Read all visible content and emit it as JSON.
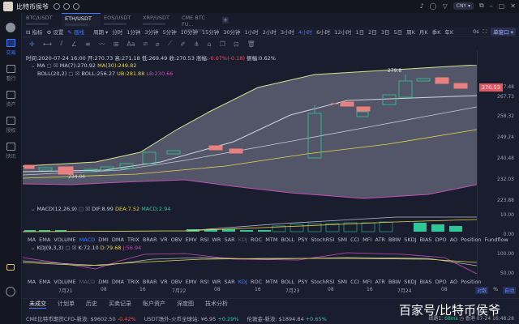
{
  "titlebar": {
    "app_title": "比特币侯爷",
    "currency": "CNY"
  },
  "sidebar": {
    "items": [
      {
        "label": "交易"
      },
      {
        "label": "看行"
      },
      {
        "label": "资产"
      },
      {
        "label": "授权"
      },
      {
        "label": "快讯"
      }
    ]
  },
  "tabs": [
    {
      "label": "BTC/USDT"
    },
    {
      "label": "ETH/USDT"
    },
    {
      "label": "EOS/USDT"
    },
    {
      "label": "XRP/USDT"
    },
    {
      "label": "CME BTC FU..."
    }
  ],
  "toolbar": {
    "indicator": "指标",
    "settings": "设置",
    "draw": "画线",
    "period": "周期",
    "periods": [
      "分时",
      "1分钟",
      "3分钟",
      "5分钟",
      "10分钟",
      "15分钟",
      "30分钟",
      "1小时",
      "2小时",
      "3小时",
      "4小时",
      "6小时",
      "12小时",
      "1日",
      "2日",
      "3日",
      "5日",
      "周K",
      "月K",
      "季K",
      "年K"
    ],
    "active_period": "4小时",
    "countdown": "0s",
    "window_mode": "单窗口"
  },
  "info": {
    "time": "时间:2020-07-24 16:00",
    "open": "开:270.73",
    "high": "高:271.18",
    "low": "低:269.49",
    "close": "收:270.53",
    "change_label": "涨幅:",
    "change": "-0.07%(-0.18)",
    "amplitude": "振幅:0.62%"
  },
  "ma": {
    "name": "MA",
    "ma7": "MA(7):270.92",
    "ma30": "MA(30):249.82"
  },
  "boll": {
    "name": "BOLL(20,2)",
    "boll": "BOLL:256.27",
    "ub": "UB:281.88",
    "lb": "LB:230.66"
  },
  "chart": {
    "high_marker": "279.8",
    "low_marker": "234.04",
    "last_price": "270.53"
  },
  "yaxis": {
    "main": [
      "277.48",
      "267.73",
      "258.32",
      "249.24",
      "240.48",
      "232.03",
      "223.88"
    ],
    "macd": [
      "10.00",
      "0.00"
    ],
    "kdj": [
      "100.00",
      "50.00"
    ]
  },
  "macd": {
    "name": "MACD(12,26,9)",
    "dif": "DIF:8.99",
    "dea": "DEA:7.52",
    "macd": "MACD:2.94"
  },
  "kdj": {
    "name": "KDJ(9,3,3)",
    "k": "K:72.10",
    "d": "D:79.68",
    "j": "J:56.94"
  },
  "indicator_list": "MA EMA VOLUME MACD DMI DMA TRIX BRAR VR OBV EMV RSI WR SAR KDJ ROC MTM BOLL PSY StochRSI SMI CCI MFI ATR BBW SKDJ BIAS DPO AO Position Fundflow",
  "xaxis": [
    {
      "label": "7月21",
      "x": 44
    },
    {
      "label": "08",
      "x": 96
    },
    {
      "label": "16",
      "x": 144
    },
    {
      "label": "7月22",
      "x": 184
    },
    {
      "label": "08",
      "x": 236
    },
    {
      "label": "16",
      "x": 286
    },
    {
      "label": "7月23",
      "x": 324
    },
    {
      "label": "08",
      "x": 376
    },
    {
      "label": "16",
      "x": 424
    },
    {
      "label": "7月24",
      "x": 462
    },
    {
      "label": "08",
      "x": 516
    },
    {
      "label": "16",
      "x": 560
    }
  ],
  "xaxis_ctrl": {
    "a": "对数",
    "b": "%",
    "c": "自动"
  },
  "bottom_tabs": [
    "未成交",
    "计划单",
    "历史",
    "买卖记录",
    "账户资产",
    "深度图",
    "技术分析"
  ],
  "ticker": [
    {
      "name": "CME比特币期货CFD-新浪:",
      "price": "$9602.50",
      "change": "-0.42%",
      "dir": "down"
    },
    {
      "name": "USDT场外-火币全球站:",
      "price": "¥6.95",
      "change": "+0.29%",
      "dir": "up"
    },
    {
      "name": "伦敦金-新浪:",
      "price": "$1894.84",
      "change": "+0.65%",
      "dir": "up"
    }
  ],
  "status": {
    "line": "线路1:",
    "latency": "68ms",
    "time": "香港 07-24 16:48:28"
  },
  "watermark": "百家号/比特币侯爷",
  "chart_data": {
    "type": "candlestick",
    "title": "ETH/USDT 4小时",
    "last_close": 270.53,
    "ylim": [
      223.88,
      281.88
    ]
  }
}
